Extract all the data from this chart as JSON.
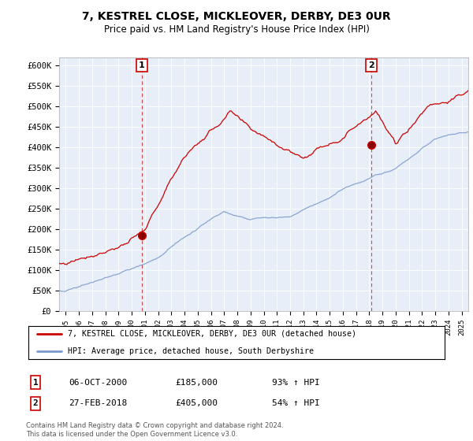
{
  "title": "7, KESTREL CLOSE, MICKLEOVER, DERBY, DE3 0UR",
  "subtitle": "Price paid vs. HM Land Registry's House Price Index (HPI)",
  "ylabel_ticks": [
    "£0",
    "£50K",
    "£100K",
    "£150K",
    "£200K",
    "£250K",
    "£300K",
    "£350K",
    "£400K",
    "£450K",
    "£500K",
    "£550K",
    "£600K"
  ],
  "ytick_values": [
    0,
    50000,
    100000,
    150000,
    200000,
    250000,
    300000,
    350000,
    400000,
    450000,
    500000,
    550000,
    600000
  ],
  "ylim": [
    0,
    620000
  ],
  "xlim_start": 1994.5,
  "xlim_end": 2025.5,
  "sale1": {
    "date": 2000.77,
    "price": 185000,
    "label": "1"
  },
  "sale2": {
    "date": 2018.15,
    "price": 405000,
    "label": "2"
  },
  "legend_line1": "7, KESTREL CLOSE, MICKLEOVER, DERBY, DE3 0UR (detached house)",
  "legend_line2": "HPI: Average price, detached house, South Derbyshire",
  "table_row1": [
    "1",
    "06-OCT-2000",
    "£185,000",
    "93% ↑ HPI"
  ],
  "table_row2": [
    "2",
    "27-FEB-2018",
    "£405,000",
    "54% ↑ HPI"
  ],
  "footer": "Contains HM Land Registry data © Crown copyright and database right 2024.\nThis data is licensed under the Open Government Licence v3.0.",
  "red_color": "#cc0000",
  "blue_color": "#7799cc",
  "plot_bg_color": "#e8eef8",
  "background_color": "#ffffff",
  "grid_color": "#ffffff"
}
